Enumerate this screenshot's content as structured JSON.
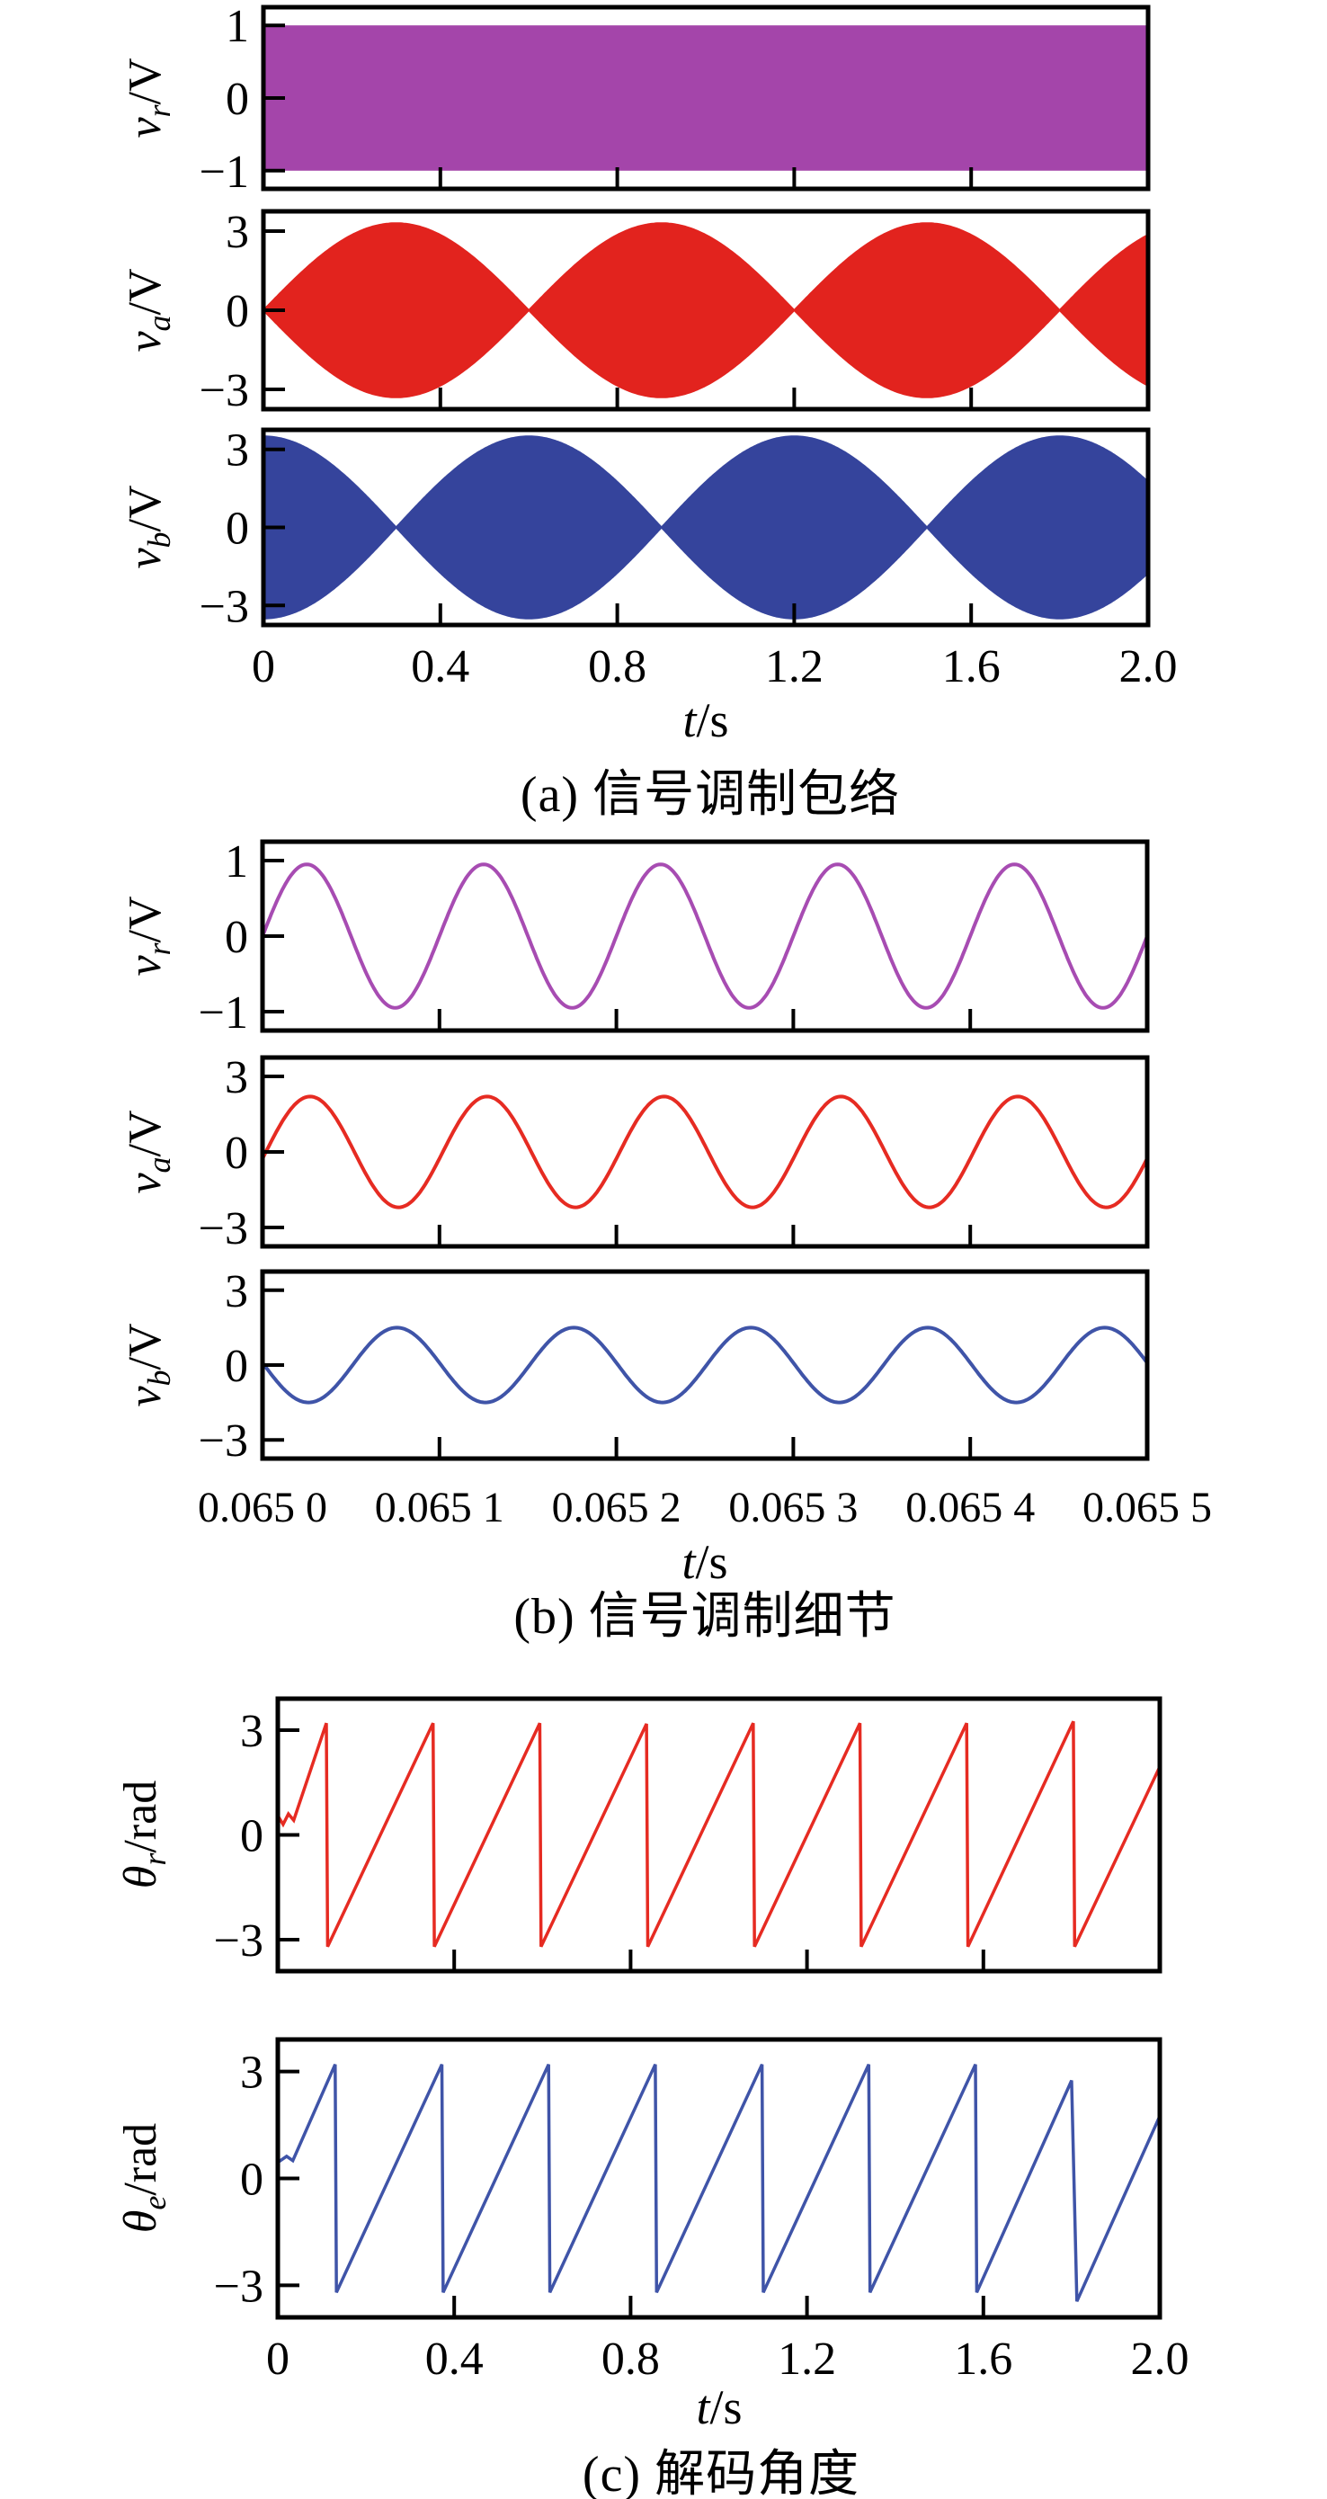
{
  "colors": {
    "purple": "#a445aa",
    "purple_line": "#a74cb2",
    "red": "#e2231e",
    "red_line": "#e62b22",
    "blue": "#35449c",
    "blue_line": "#3f54a8",
    "axis": "#000000"
  },
  "chart_data": [
    {
      "id": "a",
      "type": "area",
      "title": "(a) 信号调制包络",
      "xlabel": "t/s",
      "xlabel_var": "t",
      "xlabel_unit": "/s",
      "xlim": [
        0,
        2
      ],
      "xticks": [
        0,
        0.4,
        0.8,
        1.2,
        1.6,
        2.0
      ],
      "xtick_labels": [
        "0",
        "0.4",
        "0.8",
        "1.2",
        "1.6",
        "2.0"
      ],
      "grid": false,
      "legend": "none",
      "subplots": [
        {
          "ylabel": "vr/V",
          "ylabel_var": "v",
          "ylabel_sub": "r",
          "ylabel_unit": "/V",
          "ylim": [
            -1.25,
            1.25
          ],
          "yticks": [
            1,
            0,
            -1
          ],
          "ytick_labels": [
            "1",
            "0",
            "−1"
          ],
          "series": {
            "name": "vr",
            "kind": "band",
            "color_key": "purple",
            "amplitude": 1.0,
            "description": "reference carrier, constant envelope ±1 V (high-frequency fill)"
          }
        },
        {
          "ylabel": "va/V",
          "ylabel_var": "v",
          "ylabel_sub": "a",
          "ylabel_unit": "/V",
          "ylim": [
            -3.75,
            3.75
          ],
          "yticks": [
            3,
            0,
            -3
          ],
          "ytick_labels": [
            "3",
            "0",
            "−3"
          ],
          "series": {
            "name": "va",
            "kind": "envelope",
            "color_key": "red",
            "envelope": "abs-sin",
            "peak": 3.3,
            "period": 1.2,
            "node_times": [
              0,
              0.6,
              1.2,
              1.8
            ],
            "peak_times": [
              0.3,
              0.9,
              1.5
            ]
          }
        },
        {
          "ylabel": "vb/V",
          "ylabel_var": "v",
          "ylabel_sub": "b",
          "ylabel_unit": "/V",
          "ylim": [
            -3.75,
            3.75
          ],
          "yticks": [
            3,
            0,
            -3
          ],
          "ytick_labels": [
            "3",
            "0",
            "−3"
          ],
          "series": {
            "name": "vb",
            "kind": "envelope",
            "color_key": "blue",
            "envelope": "abs-cos",
            "peak": 3.5,
            "period": 1.2,
            "node_times": [
              0.3,
              0.9,
              1.5
            ],
            "peak_times": [
              0,
              0.6,
              1.2,
              1.8
            ]
          }
        }
      ]
    },
    {
      "id": "b",
      "type": "line",
      "title": "(b) 信号调制细节",
      "xlabel": "t/s",
      "xlabel_var": "t",
      "xlabel_unit": "/s",
      "xlim": [
        0.065,
        0.0655
      ],
      "xtick_labels": [
        "0.065 0",
        "0.065 1",
        "0.065 2",
        "0.065 3",
        "0.065 4",
        "0.065 5"
      ],
      "grid": false,
      "legend": "none",
      "subplots": [
        {
          "ylabel": "vr/V",
          "ylabel_var": "v",
          "ylabel_sub": "r",
          "ylabel_unit": "/V",
          "ylim": [
            -1.25,
            1.25
          ],
          "yticks": [
            1,
            0,
            -1
          ],
          "ytick_labels": [
            "1",
            "0",
            "−1"
          ],
          "series": {
            "name": "vr",
            "kind": "sine",
            "color_key": "purple",
            "amplitude": 0.95,
            "cycles": 5,
            "phase": 0
          }
        },
        {
          "ylabel": "va/V",
          "ylabel_var": "v",
          "ylabel_sub": "a",
          "ylabel_unit": "/V",
          "ylim": [
            -3.75,
            3.75
          ],
          "yticks": [
            3,
            0,
            -3
          ],
          "ytick_labels": [
            "3",
            "0",
            "−3"
          ],
          "series": {
            "name": "va",
            "kind": "sine",
            "color_key": "red",
            "amplitude": 2.2,
            "cycles": 5,
            "phase": -0.12
          }
        },
        {
          "ylabel": "vb/V",
          "ylabel_var": "v",
          "ylabel_sub": "b",
          "ylabel_unit": "/V",
          "ylim": [
            -3.75,
            3.75
          ],
          "yticks": [
            3,
            0,
            -3
          ],
          "ytick_labels": [
            "3",
            "0",
            "−3"
          ],
          "series": {
            "name": "vb",
            "kind": "sine",
            "color_key": "blue",
            "amplitude": -1.5,
            "cycles": 5,
            "phase": -0.06
          }
        }
      ]
    },
    {
      "id": "c",
      "type": "line",
      "title": "(c) 解码角度",
      "xlabel": "t/s",
      "xlabel_var": "t",
      "xlabel_unit": "/s",
      "xlim": [
        0,
        2
      ],
      "xticks": [
        0,
        0.4,
        0.8,
        1.2,
        1.6,
        2.0
      ],
      "xtick_labels": [
        "0",
        "0.4",
        "0.8",
        "1.2",
        "1.6",
        "2.0"
      ],
      "grid": false,
      "legend": "none",
      "subplots": [
        {
          "ylabel": "θr/rad",
          "ylabel_var": "θ",
          "ylabel_sub": "r",
          "ylabel_unit": "/rad",
          "ylim": [
            -3.9,
            3.9
          ],
          "yticks": [
            3,
            0,
            -3
          ],
          "ytick_labels": [
            "3",
            "0",
            "−3"
          ],
          "series": {
            "name": "theta_r",
            "kind": "piecewise",
            "color_key": "red",
            "points": [
              [
                0,
                0.55
              ],
              [
                0.012,
                0.3
              ],
              [
                0.024,
                0.6
              ],
              [
                0.036,
                0.42
              ],
              [
                0.11,
                3.2
              ],
              [
                0.113,
                -3.2
              ],
              [
                0.352,
                3.2
              ],
              [
                0.355,
                -3.2
              ],
              [
                0.594,
                3.2
              ],
              [
                0.597,
                -3.2
              ],
              [
                0.836,
                3.18
              ],
              [
                0.839,
                -3.2
              ],
              [
                1.078,
                3.2
              ],
              [
                1.081,
                -3.2
              ],
              [
                1.32,
                3.2
              ],
              [
                1.323,
                -3.2
              ],
              [
                1.562,
                3.2
              ],
              [
                1.565,
                -3.2
              ],
              [
                1.804,
                3.25
              ],
              [
                1.807,
                -3.2
              ],
              [
                2,
                1.95
              ]
            ]
          }
        },
        {
          "ylabel": "θe/rad",
          "ylabel_var": "θ",
          "ylabel_sub": "e",
          "ylabel_unit": "/rad",
          "ylim": [
            -3.9,
            3.9
          ],
          "yticks": [
            3,
            0,
            -3
          ],
          "ytick_labels": [
            "3",
            "0",
            "−3"
          ],
          "series": {
            "name": "theta_e",
            "kind": "piecewise",
            "color_key": "blue",
            "points": [
              [
                0,
                0.45
              ],
              [
                0.02,
                0.62
              ],
              [
                0.034,
                0.5
              ],
              [
                0.13,
                3.2
              ],
              [
                0.133,
                -3.2
              ],
              [
                0.372,
                3.2
              ],
              [
                0.375,
                -3.2
              ],
              [
                0.614,
                3.2
              ],
              [
                0.617,
                -3.2
              ],
              [
                0.856,
                3.2
              ],
              [
                0.859,
                -3.2
              ],
              [
                1.098,
                3.2
              ],
              [
                1.101,
                -3.2
              ],
              [
                1.34,
                3.2
              ],
              [
                1.343,
                -3.2
              ],
              [
                1.582,
                3.2
              ],
              [
                1.585,
                -3.2
              ],
              [
                1.8,
                2.75
              ],
              [
                1.812,
                -3.45
              ],
              [
                2,
                1.75
              ]
            ]
          }
        }
      ]
    }
  ]
}
